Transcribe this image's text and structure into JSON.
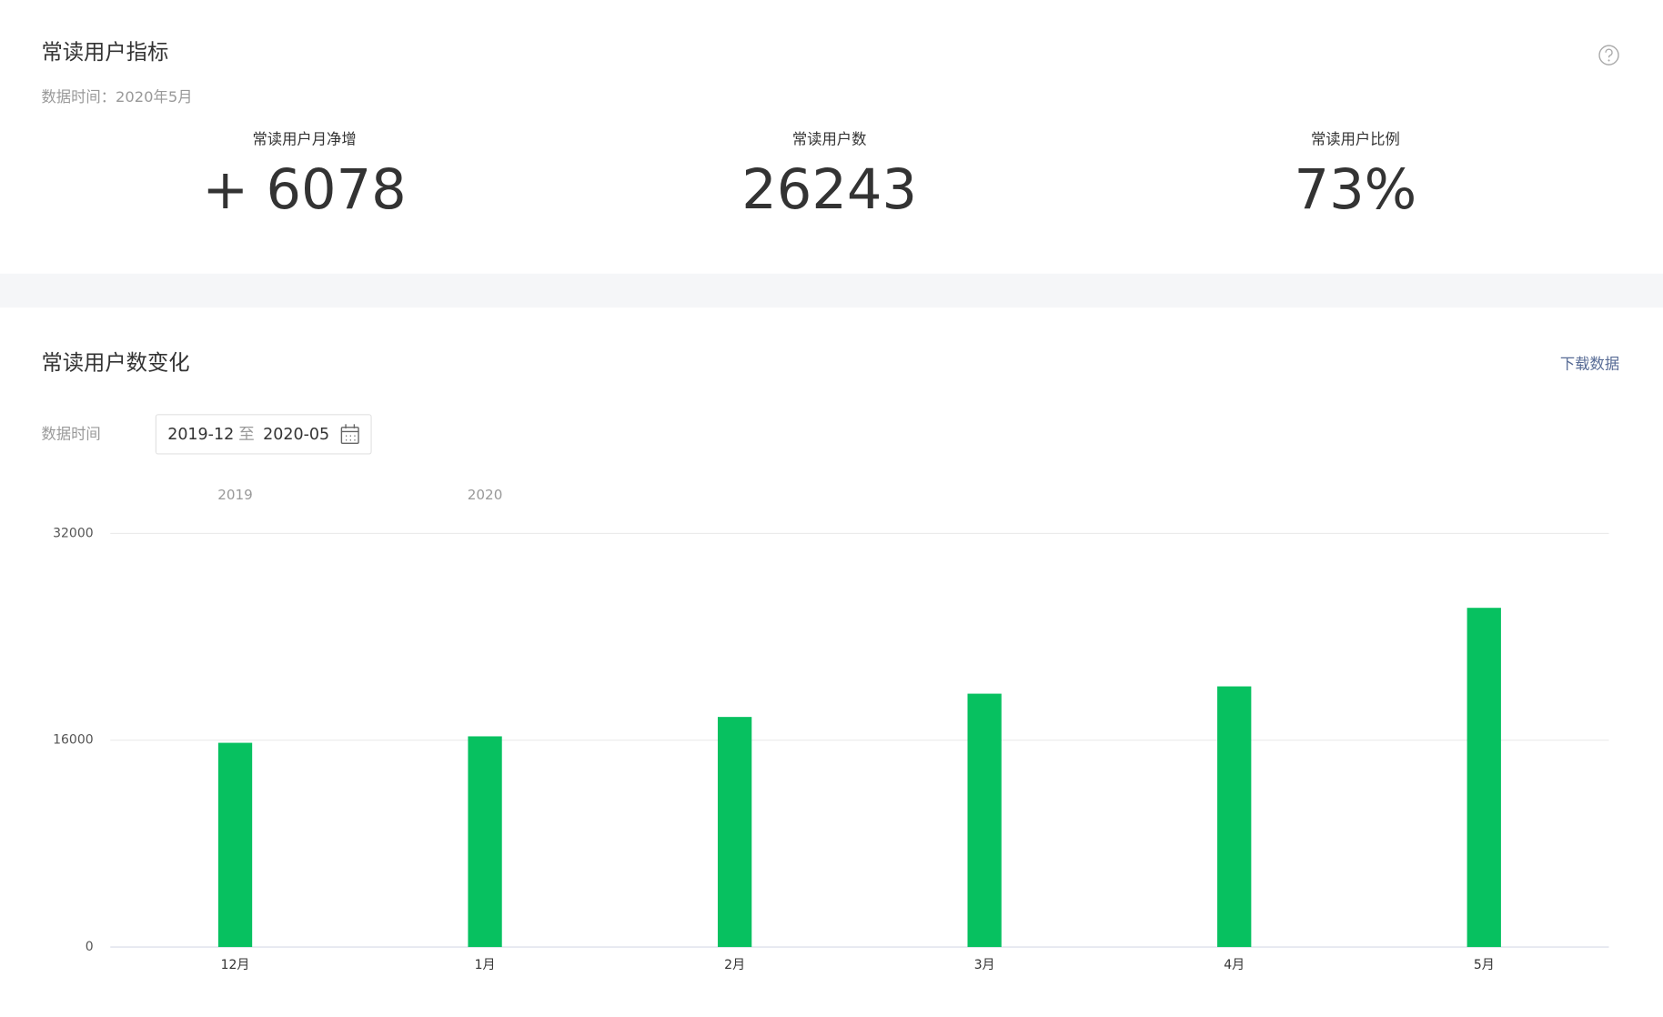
{
  "header": {
    "title": "常读用户指标",
    "data_time": "数据时间：2020年5月"
  },
  "metrics": [
    {
      "label": "常读用户月净增",
      "value": "+ 6078"
    },
    {
      "label": "常读用户数",
      "value": "26243"
    },
    {
      "label": "常读用户比例",
      "value": "73%"
    }
  ],
  "section": {
    "title": "常读用户数变化",
    "download": "下载数据",
    "date_range": {
      "label": "数据时间",
      "start": "2019-12",
      "sep": "至",
      "end": "2020-05"
    }
  },
  "chart_data": {
    "type": "bar",
    "categories": [
      "12月",
      "1月",
      "2月",
      "3月",
      "4月",
      "5月"
    ],
    "years": [
      "2019",
      "2020",
      null,
      null,
      null,
      null
    ],
    "values": [
      15800,
      16300,
      17800,
      19600,
      20165,
      26243
    ],
    "color": "#07c160",
    "ylim": [
      0,
      32000
    ],
    "yticks": [
      0,
      16000,
      32000
    ],
    "grid": true
  }
}
